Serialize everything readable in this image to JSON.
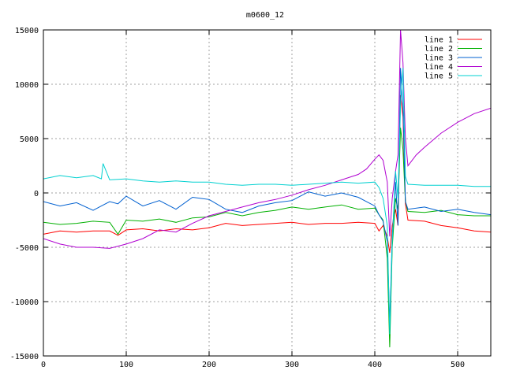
{
  "chart_data": {
    "type": "line",
    "title": "m0600_12",
    "xlabel": "",
    "ylabel": "",
    "xlim": [
      0,
      540
    ],
    "ylim": [
      -15000,
      15000
    ],
    "xticks": [
      0,
      100,
      200,
      300,
      400,
      500
    ],
    "yticks": [
      -15000,
      -10000,
      -5000,
      0,
      5000,
      10000,
      15000
    ],
    "grid": true,
    "legend_position": "top-right",
    "series": [
      {
        "name": "line 1",
        "color": "#ff0000",
        "x": [
          0,
          20,
          40,
          60,
          80,
          90,
          100,
          120,
          140,
          160,
          180,
          200,
          220,
          240,
          260,
          280,
          300,
          320,
          340,
          360,
          380,
          400,
          405,
          410,
          415,
          418,
          421,
          425,
          428,
          431,
          434,
          437,
          440,
          460,
          480,
          500,
          520,
          540
        ],
        "y": [
          -3800,
          -3500,
          -3600,
          -3500,
          -3500,
          -3900,
          -3400,
          -3300,
          -3500,
          -3300,
          -3400,
          -3200,
          -2800,
          -3000,
          -2900,
          -2800,
          -2700,
          -2900,
          -2800,
          -2800,
          -2700,
          -2800,
          -3500,
          -3000,
          -4000,
          -5500,
          -3000,
          -1500,
          -3000,
          9000,
          7000,
          -1000,
          -2500,
          -2600,
          -3000,
          -3200,
          -3500,
          -3600
        ]
      },
      {
        "name": "line 2",
        "color": "#00b000",
        "x": [
          0,
          20,
          40,
          60,
          80,
          90,
          100,
          120,
          140,
          160,
          180,
          200,
          220,
          240,
          260,
          280,
          300,
          320,
          340,
          360,
          380,
          400,
          405,
          410,
          415,
          418,
          421,
          425,
          428,
          431,
          434,
          437,
          440,
          460,
          480,
          500,
          520,
          540
        ],
        "y": [
          -2700,
          -2900,
          -2800,
          -2600,
          -2700,
          -3800,
          -2500,
          -2600,
          -2400,
          -2700,
          -2300,
          -2200,
          -1800,
          -2100,
          -1800,
          -1600,
          -1300,
          -1500,
          -1300,
          -1100,
          -1500,
          -1400,
          -2000,
          -2500,
          -6000,
          -14200,
          -5000,
          -500,
          -1500,
          6000,
          4000,
          -800,
          -1700,
          -1800,
          -1600,
          -2000,
          -2100,
          -2100
        ]
      },
      {
        "name": "line 3",
        "color": "#0060d0",
        "x": [
          0,
          20,
          40,
          60,
          80,
          90,
          100,
          120,
          140,
          160,
          180,
          200,
          220,
          240,
          260,
          280,
          300,
          320,
          340,
          360,
          380,
          400,
          405,
          410,
          415,
          418,
          421,
          425,
          428,
          431,
          434,
          437,
          440,
          460,
          480,
          500,
          520,
          540
        ],
        "y": [
          -800,
          -1200,
          -900,
          -1600,
          -800,
          -1000,
          -300,
          -1200,
          -700,
          -1500,
          -400,
          -600,
          -1500,
          -1800,
          -1200,
          -900,
          -700,
          100,
          -300,
          0,
          -400,
          -1200,
          -2000,
          -2600,
          -4500,
          -12000,
          -4000,
          1000,
          -3000,
          11500,
          8000,
          -800,
          -1500,
          -1300,
          -1700,
          -1500,
          -1800,
          -2000
        ]
      },
      {
        "name": "line 4",
        "color": "#b000d0",
        "x": [
          0,
          20,
          40,
          60,
          80,
          100,
          120,
          140,
          160,
          180,
          200,
          220,
          240,
          260,
          280,
          300,
          320,
          340,
          360,
          380,
          390,
          400,
          405,
          410,
          415,
          418,
          421,
          425,
          428,
          431,
          434,
          437,
          440,
          450,
          460,
          480,
          500,
          520,
          540
        ],
        "y": [
          -4200,
          -4700,
          -5000,
          -5000,
          -5100,
          -4700,
          -4200,
          -3400,
          -3600,
          -2800,
          -2100,
          -1700,
          -1300,
          -900,
          -600,
          -200,
          300,
          700,
          1200,
          1700,
          2200,
          3100,
          3500,
          3000,
          1000,
          -4000,
          -500,
          2000,
          3500,
          15000,
          12000,
          5000,
          2500,
          3500,
          4200,
          5500,
          6500,
          7300,
          7800
        ]
      },
      {
        "name": "line 5",
        "color": "#00d0d0",
        "x": [
          0,
          20,
          40,
          60,
          70,
          72,
          80,
          100,
          120,
          140,
          160,
          180,
          200,
          220,
          240,
          260,
          280,
          300,
          320,
          340,
          360,
          380,
          400,
          405,
          410,
          415,
          418,
          421,
          425,
          428,
          431,
          434,
          437,
          440,
          460,
          480,
          500,
          520,
          540
        ],
        "y": [
          1300,
          1600,
          1400,
          1600,
          1300,
          2700,
          1200,
          1300,
          1100,
          1000,
          1100,
          1000,
          1000,
          800,
          700,
          800,
          800,
          700,
          800,
          900,
          1000,
          900,
          1000,
          500,
          -500,
          -3000,
          -13000,
          -4500,
          2000,
          -500,
          8000,
          11500,
          1500,
          800,
          700,
          700,
          700,
          600,
          600
        ]
      }
    ]
  }
}
